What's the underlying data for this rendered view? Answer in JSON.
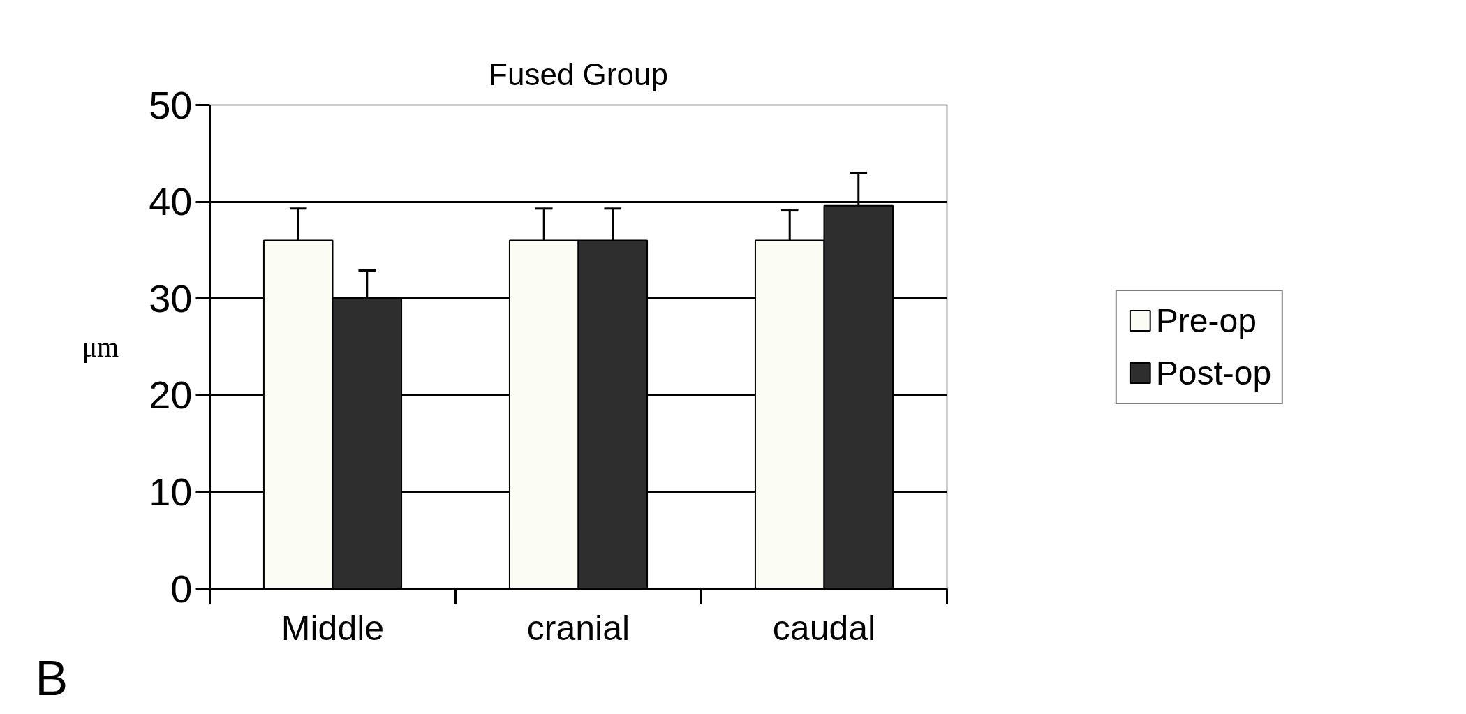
{
  "chart_data": {
    "type": "bar",
    "title": "Fused Group",
    "ylabel": "μm",
    "categories": [
      "Middle",
      "cranial",
      "caudal"
    ],
    "series": [
      {
        "name": "Pre-op",
        "color": "#fbfcf4",
        "values": [
          36,
          36,
          36
        ],
        "errors": [
          [
            36,
            39.3
          ],
          [
            36,
            39.3
          ],
          [
            36,
            39.1
          ]
        ]
      },
      {
        "name": "Post-op",
        "color": "#2e2e2e",
        "values": [
          30,
          36,
          39.6
        ],
        "errors": [
          [
            30,
            32.9
          ],
          [
            36,
            39.3
          ],
          [
            39.6,
            43
          ]
        ]
      }
    ],
    "ylim": [
      0,
      50
    ],
    "yticks": [
      0,
      10,
      20,
      30,
      40,
      50
    ],
    "grid": "y",
    "legend": "right",
    "annotations": [
      "B"
    ]
  }
}
